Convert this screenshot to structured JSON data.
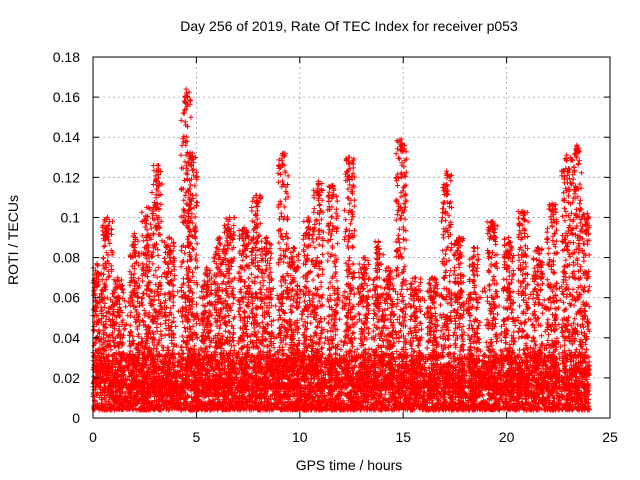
{
  "chart_data": {
    "type": "scatter",
    "title": "Day 256 of 2019, Rate Of TEC Index for receiver p053",
    "xlabel": "GPS time / hours",
    "ylabel": "ROTI / TECUs",
    "xlim": [
      0,
      25
    ],
    "ylim": [
      0,
      0.18
    ],
    "xticks": [
      "0",
      "5",
      "10",
      "15",
      "20",
      "25"
    ],
    "yticks": [
      "0",
      "0.02",
      "0.04",
      "0.06",
      "0.08",
      "0.1",
      "0.12",
      "0.14",
      "0.16",
      "0.18"
    ],
    "grid": true,
    "marker": "+",
    "color": "#ff0000",
    "x_range_data": [
      0,
      24
    ],
    "peaks": [
      {
        "x": 0.2,
        "y": 0.077
      },
      {
        "x": 0.7,
        "y": 0.1
      },
      {
        "x": 1.2,
        "y": 0.07
      },
      {
        "x": 2.0,
        "y": 0.092
      },
      {
        "x": 2.6,
        "y": 0.105
      },
      {
        "x": 3.1,
        "y": 0.126
      },
      {
        "x": 3.7,
        "y": 0.09
      },
      {
        "x": 4.5,
        "y": 0.164
      },
      {
        "x": 4.8,
        "y": 0.132
      },
      {
        "x": 5.5,
        "y": 0.075
      },
      {
        "x": 6.1,
        "y": 0.09
      },
      {
        "x": 6.6,
        "y": 0.1
      },
      {
        "x": 7.3,
        "y": 0.095
      },
      {
        "x": 7.9,
        "y": 0.111
      },
      {
        "x": 8.4,
        "y": 0.09
      },
      {
        "x": 9.2,
        "y": 0.132
      },
      {
        "x": 9.7,
        "y": 0.085
      },
      {
        "x": 10.4,
        "y": 0.1
      },
      {
        "x": 10.9,
        "y": 0.118
      },
      {
        "x": 11.6,
        "y": 0.116
      },
      {
        "x": 12.4,
        "y": 0.13
      },
      {
        "x": 13.1,
        "y": 0.08
      },
      {
        "x": 13.8,
        "y": 0.088
      },
      {
        "x": 14.3,
        "y": 0.075
      },
      {
        "x": 14.9,
        "y": 0.139
      },
      {
        "x": 15.6,
        "y": 0.07
      },
      {
        "x": 16.4,
        "y": 0.07
      },
      {
        "x": 17.1,
        "y": 0.123
      },
      {
        "x": 17.7,
        "y": 0.09
      },
      {
        "x": 18.4,
        "y": 0.085
      },
      {
        "x": 19.3,
        "y": 0.098
      },
      {
        "x": 20.1,
        "y": 0.09
      },
      {
        "x": 20.8,
        "y": 0.103
      },
      {
        "x": 21.5,
        "y": 0.085
      },
      {
        "x": 22.2,
        "y": 0.107
      },
      {
        "x": 22.9,
        "y": 0.131
      },
      {
        "x": 23.4,
        "y": 0.136
      },
      {
        "x": 23.9,
        "y": 0.102
      }
    ]
  }
}
